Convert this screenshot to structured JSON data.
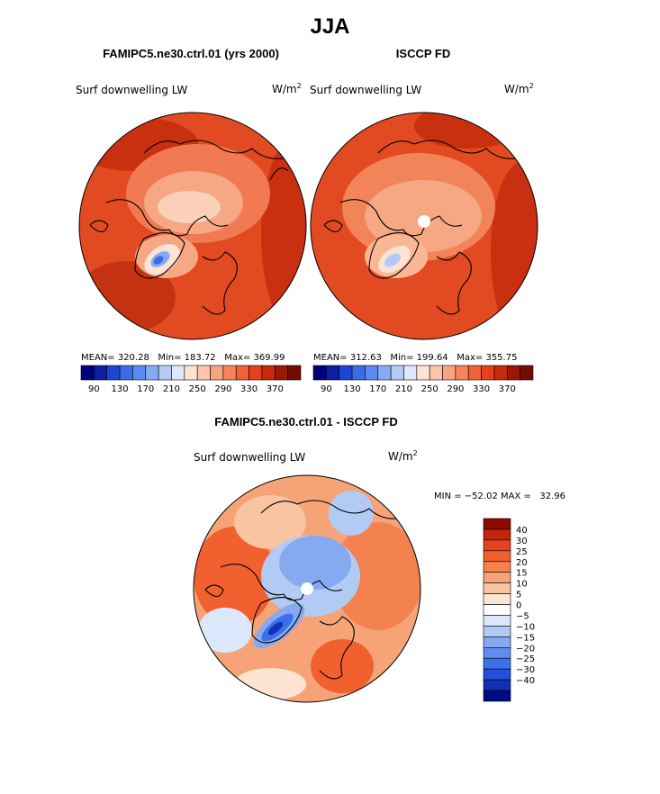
{
  "page_title": "JJA",
  "panels": [
    {
      "id": "model",
      "subtitle": "FAMIPC5.ne30.ctrl.01 (yrs 2000)",
      "variable": "Surf downwelling LW",
      "units_base": "W/m",
      "units_exp": "2",
      "stats": {
        "mean": "MEAN= 320.28",
        "min": "Min= 183.72",
        "max": "Max= 369.99"
      }
    },
    {
      "id": "obs",
      "subtitle": "ISCCP FD",
      "variable": "Surf downwelling LW",
      "units_base": "W/m",
      "units_exp": "2",
      "stats": {
        "mean": "MEAN= 312.63",
        "min": "Min= 199.64",
        "max": "Max= 355.75"
      }
    }
  ],
  "abs_colorbar": {
    "colors": [
      "#00007f",
      "#0a1fa6",
      "#1f45d6",
      "#3a6ce6",
      "#5b8af0",
      "#86aaf3",
      "#b3cbf6",
      "#dde8fb",
      "#fde3d3",
      "#fcc5aa",
      "#f9a481",
      "#f6835a",
      "#f2603a",
      "#e7401d",
      "#c52a0d",
      "#9e1705",
      "#740b00"
    ],
    "ticks": [
      "90",
      "130",
      "170",
      "210",
      "250",
      "290",
      "330",
      "370"
    ]
  },
  "diff_panel": {
    "subtitle": "FAMIPC5.ne30.ctrl.01 - ISCCP FD",
    "variable": "Surf downwelling LW",
    "units_base": "W/m",
    "units_exp": "2",
    "minmax": "MIN = −52.02 MAX =   32.96"
  },
  "diff_colorbar": {
    "colors_top_to_bottom": [
      "#8c0a00",
      "#c0260b",
      "#e4431d",
      "#f2602f",
      "#f4824e",
      "#f6a377",
      "#f9c4a2",
      "#fde4d2",
      "#ffffff",
      "#dbe8fb",
      "#b2cbf5",
      "#87a9f1",
      "#5f8ded",
      "#3d6fe8",
      "#234fda",
      "#1030b6",
      "#000a85"
    ],
    "labels": [
      "40",
      "30",
      "25",
      "20",
      "15",
      "10",
      "5",
      "0",
      "−5",
      "−10",
      "−15",
      "−20",
      "−25",
      "−30",
      "−40"
    ]
  }
}
